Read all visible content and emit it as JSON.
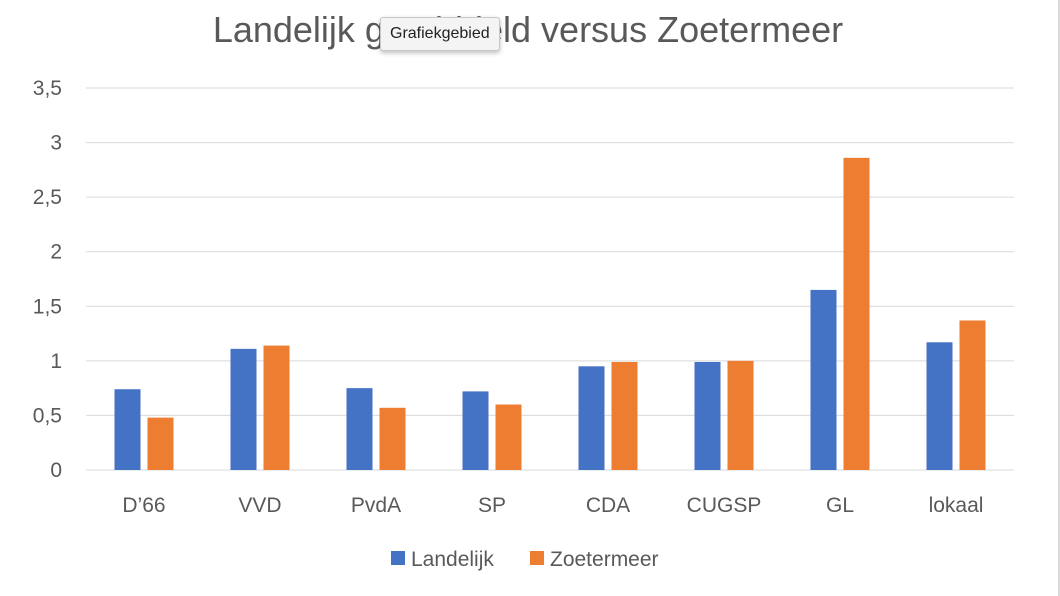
{
  "tooltip": "Grafiekgebied",
  "chart_data": {
    "type": "bar",
    "title": "Landelijk gemiddeld versus Zoetermeer",
    "categories": [
      "D’66",
      "VVD",
      "PvdA",
      "SP",
      "CDA",
      "CUGSP",
      "GL",
      "lokaal"
    ],
    "series": [
      {
        "name": "Landelijk",
        "color": "#4472c4",
        "values": [
          0.74,
          1.11,
          0.75,
          0.72,
          0.95,
          0.99,
          1.65,
          1.17
        ]
      },
      {
        "name": "Zoetermeer",
        "color": "#ed7d31",
        "values": [
          0.48,
          1.14,
          0.57,
          0.6,
          0.99,
          1.0,
          2.86,
          1.37
        ]
      }
    ],
    "yticks": [
      "0",
      "0,5",
      "1",
      "1,5",
      "2",
      "2,5",
      "3",
      "3,5"
    ],
    "ylim": [
      0,
      3.5
    ],
    "grid": true,
    "legend_position": "bottom",
    "gridline_color": "#d9d9d9"
  }
}
